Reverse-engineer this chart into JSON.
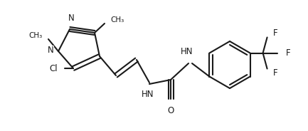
{
  "bg_color": "#ffffff",
  "bond_color": "#1a1a1a",
  "line_width": 1.5,
  "figsize": [
    4.33,
    1.84
  ],
  "dpi": 100,
  "xlim": [
    0,
    433
  ],
  "ylim": [
    0,
    184
  ]
}
